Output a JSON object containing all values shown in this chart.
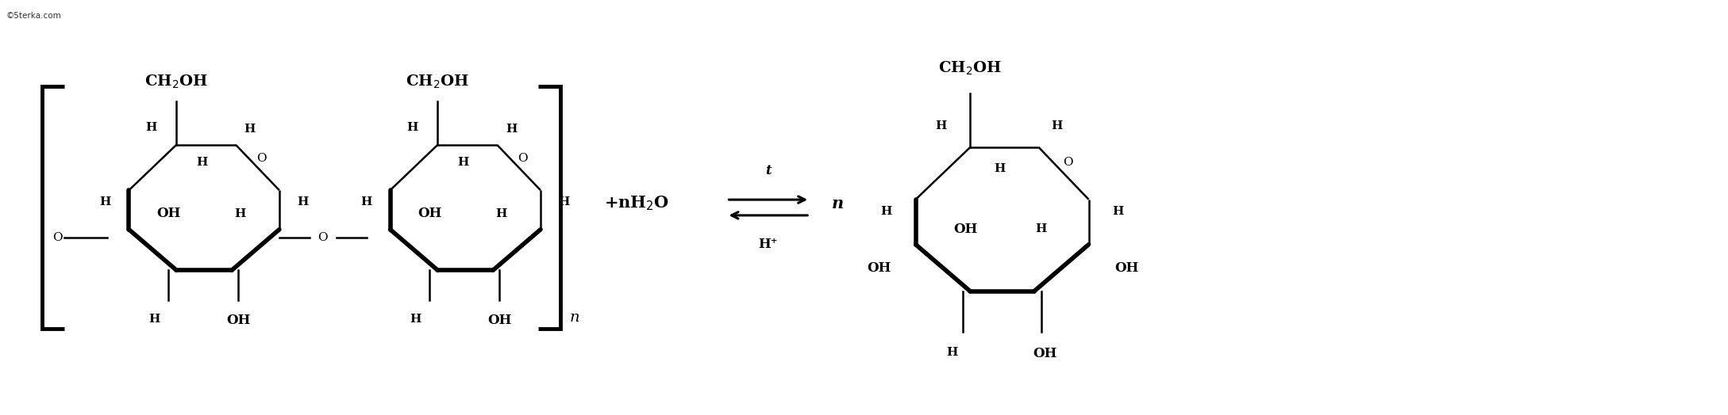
{
  "bg_color": "#ffffff",
  "text_color": "#000000",
  "figsize": [
    21.77,
    5.24
  ],
  "dpi": 100,
  "lw_thin": 1.8,
  "lw_thick": 4.0,
  "fs_large": 14,
  "fs_med": 12,
  "fs_small": 11,
  "xlim": [
    0,
    21.77
  ],
  "ylim": [
    0,
    5.24
  ]
}
